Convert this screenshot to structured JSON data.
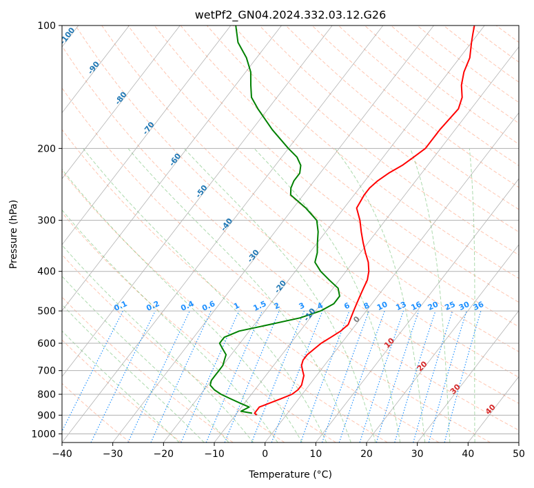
{
  "chart_data": {
    "type": "line",
    "subtype": "skew-T log-P diagram",
    "title": "wetPf2_GN04.2024.332.03.12.G26",
    "xlabel": "Temperature (°C)",
    "ylabel": "Pressure (hPa)",
    "xlim": [
      -40,
      50
    ],
    "ylim": [
      1050,
      100
    ],
    "y_scale": "log",
    "grid": true,
    "x_ticks": [
      -40,
      -30,
      -20,
      -10,
      0,
      10,
      20,
      30,
      40,
      50
    ],
    "y_ticks": [
      100,
      200,
      300,
      400,
      500,
      600,
      700,
      800,
      900,
      1000
    ],
    "series": [
      {
        "name": "",
        "color": "#ff0000",
        "pressure": [
          900,
          890,
          860,
          840,
          820,
          800,
          780,
          760,
          740,
          720,
          700,
          680,
          660,
          640,
          620,
          600,
          580,
          560,
          540,
          520,
          500,
          480,
          460,
          440,
          420,
          400,
          380,
          360,
          340,
          320,
          300,
          280,
          260,
          250,
          240,
          230,
          220,
          210,
          200,
          180,
          160,
          150,
          140,
          130,
          120,
          110,
          105,
          100
        ],
        "temperature": [
          -5.8,
          -6.5,
          -6.5,
          -5.0,
          -3.5,
          -2.0,
          -1.5,
          -1.5,
          -2.0,
          -2.5,
          -3.5,
          -4.5,
          -5.0,
          -5.0,
          -4.5,
          -4.0,
          -3.0,
          -2.0,
          -1.5,
          -2.0,
          -2.5,
          -3.0,
          -3.5,
          -4.0,
          -4.5,
          -5.5,
          -7.0,
          -9.0,
          -11.0,
          -13.0,
          -15.0,
          -17.5,
          -18.0,
          -18.0,
          -17.5,
          -16.5,
          -15.0,
          -14.0,
          -13.0,
          -13.0,
          -12.5,
          -13.5,
          -15.5,
          -17.0,
          -18.0,
          -20.0,
          -21.0,
          -22.0
        ]
      },
      {
        "name": "",
        "color": "#008000",
        "pressure": [
          890,
          880,
          860,
          840,
          820,
          800,
          780,
          760,
          740,
          720,
          700,
          680,
          660,
          640,
          620,
          600,
          580,
          560,
          540,
          520,
          500,
          480,
          460,
          440,
          420,
          400,
          380,
          360,
          340,
          320,
          300,
          280,
          260,
          250,
          240,
          230,
          220,
          210,
          200,
          180,
          160,
          150,
          140,
          130,
          120,
          110,
          100
        ],
        "temperature": [
          -7.0,
          -9.5,
          -8.5,
          -11.0,
          -13.5,
          -16.0,
          -18.0,
          -19.5,
          -20.0,
          -20.0,
          -20.0,
          -20.0,
          -20.5,
          -21.0,
          -22.5,
          -24.0,
          -24.0,
          -22.0,
          -17.0,
          -12.0,
          -9.0,
          -7.5,
          -7.5,
          -9.0,
          -12.0,
          -15.0,
          -17.5,
          -18.5,
          -20.0,
          -21.5,
          -23.5,
          -27.5,
          -32.5,
          -33.5,
          -34.0,
          -34.0,
          -35.0,
          -37.0,
          -40.0,
          -46.0,
          -52.0,
          -55.0,
          -57.0,
          -59.0,
          -62.0,
          -66.0,
          -69.0
        ]
      }
    ],
    "mixing_ratio_labels": [
      "0.1",
      "0.2",
      "0.4",
      "0.6",
      "1",
      "1.5",
      "2",
      "3",
      "4",
      "6",
      "8",
      "10",
      "13",
      "16",
      "20",
      "25",
      "30",
      "36"
    ],
    "mixing_ratio_values": [
      0.1,
      0.2,
      0.4,
      0.6,
      1,
      1.5,
      2,
      3,
      4,
      6,
      8,
      10,
      13,
      16,
      20,
      25,
      30,
      36
    ],
    "dry_adiabat_labels": [
      "-100",
      "-90",
      "-80",
      "-70",
      "-60",
      "-50",
      "-40",
      "-30",
      "-20",
      "-10"
    ],
    "moist_adiabat_labels": [
      "0",
      "10",
      "20",
      "30",
      "40"
    ],
    "colors": {
      "temperature": "#ff0000",
      "dewpoint": "#008000",
      "dry_adiabats": "#ff7f50",
      "moist_adiabats": "#2ca02c",
      "mixing_ratio": "#1e90ff",
      "isotherms": "#808080",
      "moist_label_0": "#7f7f7f",
      "moist_label_warm": "#d62728",
      "dry_label": "#1f77b4"
    }
  }
}
